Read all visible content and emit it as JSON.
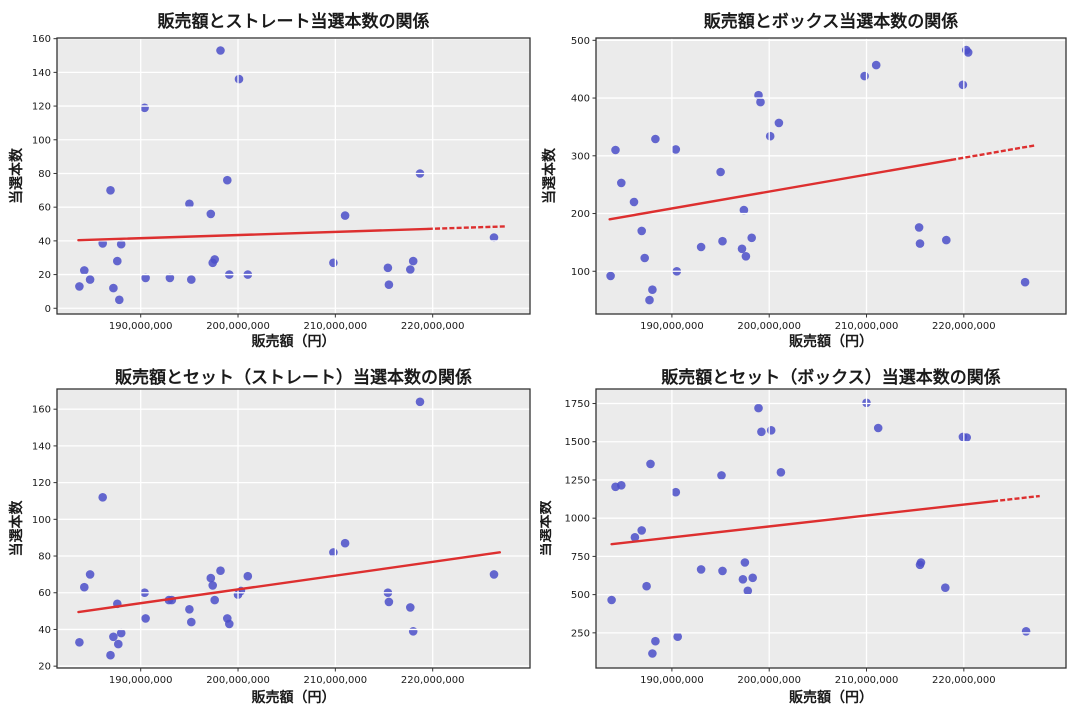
{
  "figure": {
    "background": "#ffffff"
  },
  "style": {
    "plot_bg": "#ebebeb",
    "grid_color": "#ffffff",
    "dot_color": "#4b4fc9",
    "dot_opacity": 0.85,
    "dot_radius": 4.3,
    "line_color": "#dd2f2f",
    "line_width": 2.4,
    "spine_color": "#333333",
    "tick_color": "#333333",
    "text_color": "#1a1a1a"
  },
  "chart_data": [
    {
      "type": "scatter",
      "title": "販売額とストレート当選本数の関係",
      "xlabel": "販売額（円）",
      "ylabel": "当選本数",
      "xlim": [
        181400000,
        230000000
      ],
      "ylim": [
        -3.4,
        160.4
      ],
      "xticks": [
        190000000,
        200000000,
        210000000,
        220000000
      ],
      "xtick_labels": [
        "190,000,000",
        "200,000,000",
        "210,000,000",
        "220,000,000"
      ],
      "yticks": [
        0,
        20,
        40,
        60,
        80,
        100,
        120,
        140,
        160
      ],
      "ytick_labels": [
        "0",
        "20",
        "40",
        "60",
        "80",
        "100",
        "120",
        "140",
        "160"
      ],
      "grid": true,
      "legend": null,
      "points": [
        [
          183700000,
          13
        ],
        [
          184200000,
          22.5
        ],
        [
          184800000,
          17
        ],
        [
          186100000,
          38.5
        ],
        [
          186900000,
          70
        ],
        [
          187200000,
          12
        ],
        [
          187600000,
          28
        ],
        [
          187800000,
          5
        ],
        [
          188000000,
          38
        ],
        [
          190400000,
          119
        ],
        [
          190500000,
          18
        ],
        [
          193000000,
          18
        ],
        [
          195000000,
          62
        ],
        [
          195200000,
          17
        ],
        [
          197200000,
          56
        ],
        [
          197400000,
          27
        ],
        [
          197600000,
          29
        ],
        [
          198200000,
          153
        ],
        [
          198900000,
          76
        ],
        [
          199100000,
          20
        ],
        [
          200100000,
          136
        ],
        [
          201000000,
          20
        ],
        [
          209800000,
          27
        ],
        [
          211000000,
          55
        ],
        [
          215400000,
          24
        ],
        [
          215500000,
          14
        ],
        [
          217700000,
          23
        ],
        [
          218000000,
          28
        ],
        [
          218700000,
          80
        ],
        [
          226300000,
          42
        ]
      ],
      "regression_line": {
        "x_start": 183600000,
        "y_start": 40.4,
        "x_end": 227500000,
        "y_end": 48.6,
        "dash_from_x": 219500000
      }
    },
    {
      "type": "scatter",
      "title": "販売額とボックス当選本数の関係",
      "xlabel": "販売額（円）",
      "ylabel": "当選本数",
      "xlim": [
        182200000,
        230500000
      ],
      "ylim": [
        26,
        504
      ],
      "xticks": [
        190000000,
        200000000,
        210000000,
        220000000
      ],
      "xtick_labels": [
        "190,000,000",
        "200,000,000",
        "210,000,000",
        "220,000,000"
      ],
      "yticks": [
        100,
        200,
        300,
        400,
        500
      ],
      "ytick_labels": [
        "100",
        "200",
        "300",
        "400",
        "500"
      ],
      "grid": true,
      "legend": null,
      "points": [
        [
          183700000,
          92
        ],
        [
          184200000,
          310
        ],
        [
          184800000,
          253
        ],
        [
          186100000,
          220
        ],
        [
          186900000,
          170
        ],
        [
          187200000,
          123
        ],
        [
          187700000,
          50
        ],
        [
          188000000,
          68
        ],
        [
          188300000,
          329
        ],
        [
          190400000,
          311
        ],
        [
          190500000,
          100
        ],
        [
          193000000,
          142
        ],
        [
          195000000,
          272
        ],
        [
          195200000,
          152
        ],
        [
          197200000,
          139
        ],
        [
          197400000,
          206
        ],
        [
          197600000,
          126
        ],
        [
          198200000,
          158
        ],
        [
          198900000,
          405
        ],
        [
          199100000,
          393
        ],
        [
          200100000,
          334
        ],
        [
          201000000,
          357
        ],
        [
          209800000,
          438
        ],
        [
          211000000,
          457
        ],
        [
          215400000,
          176
        ],
        [
          215500000,
          148
        ],
        [
          218200000,
          154
        ],
        [
          219900000,
          423
        ],
        [
          220250000,
          483
        ],
        [
          220450000,
          479
        ],
        [
          226300000,
          81
        ]
      ],
      "regression_line": {
        "x_start": 183600000,
        "y_start": 190,
        "x_end": 227300000,
        "y_end": 318,
        "dash_from_x": 218700000
      }
    },
    {
      "type": "scatter",
      "title": "販売額とセット（ストレート）当選本数の関係",
      "xlabel": "販売額（円）",
      "ylabel": "当選本数",
      "xlim": [
        181400000,
        230000000
      ],
      "ylim": [
        19,
        171
      ],
      "xticks": [
        190000000,
        200000000,
        210000000,
        220000000
      ],
      "xtick_labels": [
        "190,000,000",
        "200,000,000",
        "210,000,000",
        "220,000,000"
      ],
      "yticks": [
        20,
        40,
        60,
        80,
        100,
        120,
        140,
        160
      ],
      "ytick_labels": [
        "20",
        "40",
        "60",
        "80",
        "100",
        "120",
        "140",
        "160"
      ],
      "grid": true,
      "legend": null,
      "points": [
        [
          183700000,
          33
        ],
        [
          184200000,
          63
        ],
        [
          184800000,
          70
        ],
        [
          186100000,
          112
        ],
        [
          186900000,
          26
        ],
        [
          187200000,
          36
        ],
        [
          187600000,
          54
        ],
        [
          187700000,
          32
        ],
        [
          188000000,
          38
        ],
        [
          190400000,
          60
        ],
        [
          190500000,
          46
        ],
        [
          192900000,
          56
        ],
        [
          193200000,
          56
        ],
        [
          195000000,
          51
        ],
        [
          195200000,
          44
        ],
        [
          197200000,
          68
        ],
        [
          197400000,
          64
        ],
        [
          197600000,
          56
        ],
        [
          198200000,
          72
        ],
        [
          198900000,
          46
        ],
        [
          199100000,
          43
        ],
        [
          200000000,
          59
        ],
        [
          200300000,
          61
        ],
        [
          201000000,
          69
        ],
        [
          209800000,
          82
        ],
        [
          211000000,
          87
        ],
        [
          215400000,
          60
        ],
        [
          215500000,
          55
        ],
        [
          217700000,
          52
        ],
        [
          218000000,
          39
        ],
        [
          218700000,
          164
        ],
        [
          226300000,
          70
        ]
      ],
      "regression_line": {
        "x_start": 183600000,
        "y_start": 49.5,
        "x_end": 226900000,
        "y_end": 82,
        "dash_from_x": null
      }
    },
    {
      "type": "scatter",
      "title": "販売額とセット（ボックス）当選本数の関係",
      "xlabel": "販売額（円）",
      "ylabel": "当選本数",
      "xlim": [
        182200000,
        230500000
      ],
      "ylim": [
        20,
        1845
      ],
      "xticks": [
        190000000,
        200000000,
        210000000,
        220000000
      ],
      "xtick_labels": [
        "190,000,000",
        "200,000,000",
        "210,000,000",
        "220,000,000"
      ],
      "yticks": [
        250,
        500,
        750,
        1000,
        1250,
        1500,
        1750
      ],
      "ytick_labels": [
        "250",
        "500",
        "750",
        "1000",
        "1250",
        "1500",
        "1750"
      ],
      "grid": true,
      "legend": null,
      "points": [
        [
          183800000,
          465
        ],
        [
          184200000,
          1205
        ],
        [
          184800000,
          1215
        ],
        [
          186200000,
          875
        ],
        [
          186900000,
          920
        ],
        [
          187400000,
          555
        ],
        [
          187800000,
          1355
        ],
        [
          188000000,
          115
        ],
        [
          188300000,
          195
        ],
        [
          190400000,
          1170
        ],
        [
          190600000,
          225
        ],
        [
          193000000,
          665
        ],
        [
          195100000,
          1280
        ],
        [
          195200000,
          655
        ],
        [
          197300000,
          600
        ],
        [
          197500000,
          710
        ],
        [
          197800000,
          525
        ],
        [
          198300000,
          610
        ],
        [
          198900000,
          1720
        ],
        [
          199200000,
          1565
        ],
        [
          200200000,
          1575
        ],
        [
          201200000,
          1300
        ],
        [
          210000000,
          1755
        ],
        [
          211200000,
          1590
        ],
        [
          215500000,
          695
        ],
        [
          215600000,
          710
        ],
        [
          218100000,
          545
        ],
        [
          219900000,
          1532
        ],
        [
          220300000,
          1528
        ],
        [
          226400000,
          260
        ]
      ],
      "regression_line": {
        "x_start": 183800000,
        "y_start": 830,
        "x_end": 227800000,
        "y_end": 1145,
        "dash_from_x": 223000000
      }
    }
  ]
}
